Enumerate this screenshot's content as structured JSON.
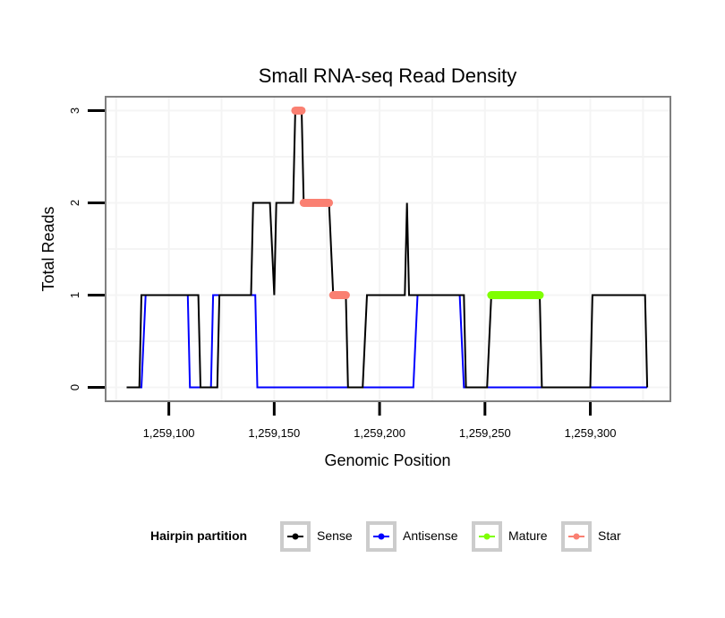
{
  "chart_data": {
    "type": "line",
    "title": "Small RNA-seq Read Density",
    "xlabel": "Genomic Position",
    "ylabel": "Total Reads",
    "xlim": [
      1259070,
      1259338
    ],
    "ylim": [
      -0.15,
      3.15
    ],
    "x_ticks": [
      1259100,
      1259150,
      1259200,
      1259250,
      1259300
    ],
    "x_tick_labels": [
      "1,259,100",
      "1,259,150",
      "1,259,200",
      "1,259,250",
      "1,259,300"
    ],
    "y_ticks": [
      0,
      1,
      2,
      3
    ],
    "y_tick_labels": [
      "0",
      "1",
      "2",
      "3"
    ],
    "grid": true,
    "legend": {
      "title": "Hairpin partition",
      "placement": "bottom",
      "entries": [
        "Sense",
        "Antisense",
        "Mature",
        "Star"
      ]
    },
    "series": [
      {
        "name": "Sense",
        "color": "#000000",
        "style": "line",
        "x": [
          1259080,
          1259086,
          1259087,
          1259114,
          1259115,
          1259123,
          1259124,
          1259139,
          1259140,
          1259148,
          1259150,
          1259151,
          1259159,
          1259160,
          1259163,
          1259164,
          1259176,
          1259178,
          1259184,
          1259185,
          1259192,
          1259194,
          1259212,
          1259213,
          1259214,
          1259240,
          1259241,
          1259251,
          1259253,
          1259276,
          1259277,
          1259300,
          1259301,
          1259326,
          1259327
        ],
        "y": [
          0,
          0,
          1,
          1,
          0,
          0,
          1,
          1,
          2,
          2,
          1,
          2,
          2,
          3,
          3,
          2,
          2,
          1,
          1,
          0,
          0,
          1,
          1,
          2,
          1,
          1,
          0,
          0,
          1,
          1,
          0,
          0,
          1,
          1,
          0
        ]
      },
      {
        "name": "Antisense",
        "color": "#0000ff",
        "style": "line",
        "x": [
          1259080,
          1259087,
          1259089,
          1259109,
          1259110,
          1259120,
          1259121,
          1259141,
          1259142,
          1259216,
          1259218,
          1259238,
          1259240,
          1259327
        ],
        "y": [
          0,
          0,
          1,
          1,
          0,
          0,
          1,
          1,
          0,
          0,
          1,
          1,
          0,
          0
        ]
      },
      {
        "name": "Mature",
        "color": "#7fff00",
        "style": "thick-segment",
        "segments": [
          {
            "x_start": 1259253,
            "x_end": 1259276,
            "y": 1
          }
        ]
      },
      {
        "name": "Star",
        "color": "#fa8072",
        "style": "thick-segment",
        "segments": [
          {
            "x_start": 1259160,
            "x_end": 1259163,
            "y": 3
          },
          {
            "x_start": 1259164,
            "x_end": 1259176,
            "y": 2
          },
          {
            "x_start": 1259178,
            "x_end": 1259184,
            "y": 1
          }
        ]
      }
    ]
  }
}
